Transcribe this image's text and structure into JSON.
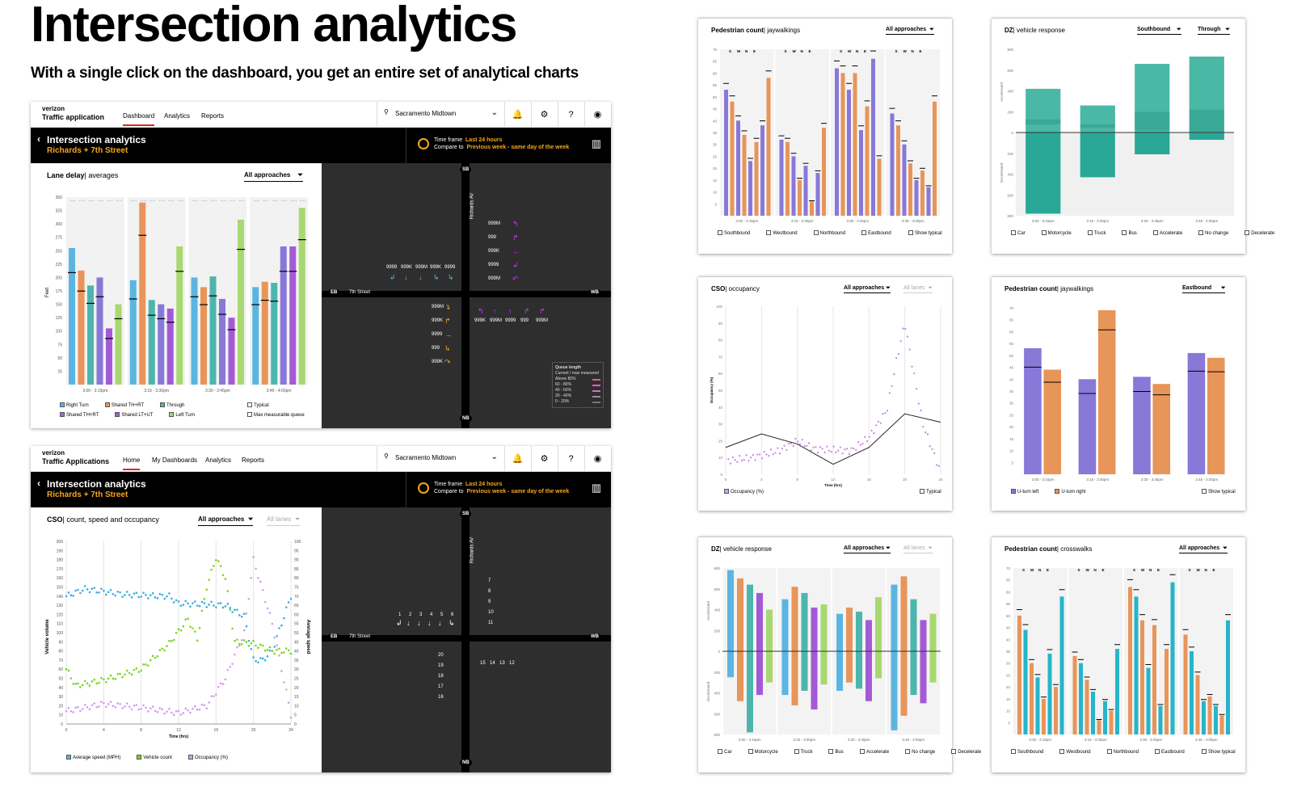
{
  "header": {
    "title": "Intersection analytics",
    "subtitle": "With a single click on the dashboard, you get an entire set of analytical charts"
  },
  "app1": {
    "brand_top": "verizon",
    "brand": "Traffic application",
    "nav": [
      "Dashboard",
      "Analytics",
      "Reports"
    ],
    "location": "Sacramento Midtown",
    "page_title": "Intersection analytics",
    "page_sub": "Richards + 7th Street",
    "tf_label": "Time frame",
    "tf_value": "Last 24 hours",
    "cmp_label": "Compare to",
    "cmp_value": "Previous week - same day of the week",
    "chart_title": "Lane delay",
    "chart_sub": "| averages",
    "filter": "All approaches",
    "chart_data": {
      "type": "bar",
      "ylabel": "Feet",
      "ylim": [
        0,
        350
      ],
      "yticks": [
        350,
        325,
        300,
        275,
        250,
        225,
        200,
        175,
        150,
        125,
        100,
        75,
        50,
        25
      ],
      "categories": [
        "3:00 - 3:15pm",
        "3:15 - 3:30pm",
        "3:30 - 3:45pm",
        "3:45 - 4:00pm"
      ],
      "series": [
        {
          "name": "Right Turn",
          "color": "#5bb5e0",
          "values": [
            255,
            195,
            200,
            182
          ]
        },
        {
          "name": "Shared TH+RT",
          "color": "#e8955a",
          "values": [
            213,
            340,
            182,
            192
          ]
        },
        {
          "name": "Through",
          "color": "#4db6ac",
          "values": [
            185,
            158,
            202,
            190
          ]
        },
        {
          "name": "Shared TH+RT",
          "color": "#8878d8",
          "values": [
            200,
            150,
            160,
            258
          ]
        },
        {
          "name": "Shared LT+UT",
          "color": "#a45ad6",
          "values": [
            105,
            142,
            125,
            258
          ]
        },
        {
          "name": "Left Turn",
          "color": "#a8d870",
          "values": [
            150,
            258,
            308,
            330
          ]
        }
      ]
    },
    "legend": [
      "Right Turn",
      "Shared TH+RT",
      "Through",
      "Shared TH+RT",
      "Shared LT+UT",
      "Left Turn"
    ],
    "legend_right": [
      "Typical",
      "Max measurable queue"
    ],
    "map": {
      "roads": {
        "sb": "SB",
        "nb": "NB",
        "eb": "EB",
        "wb": "WB",
        "street": "7th Street",
        "avenue": "Richards AV"
      },
      "east_lanes": [
        "999M",
        "999",
        "999K",
        "9999",
        "999M"
      ],
      "north_vals": [
        "9999",
        "999K",
        "999M",
        "999K",
        "9999"
      ],
      "west_lanes": [
        "999M",
        "999K",
        "9999",
        "999",
        "999K"
      ],
      "south_vals": [
        "999K",
        "999M",
        "9999",
        "999",
        "999M"
      ],
      "queue": {
        "title": "Queue length",
        "sub": "Current / max measured",
        "rows": [
          "Above 80%",
          "60 - 80%",
          "40 - 60%",
          "20 - 40%",
          "0 - 20%"
        ]
      }
    }
  },
  "app2": {
    "brand_top": "verizon",
    "brand": "Traffic Applications",
    "nav": [
      "Home",
      "My Dashboards",
      "Analytics",
      "Reports"
    ],
    "location": "Sacramento Midtown",
    "page_title": "Intersection analytics",
    "page_sub": "Richards + 7th Street",
    "tf_label": "Time frame",
    "tf_value": "Last 24 hours",
    "cmp_label": "Compare to",
    "cmp_value": "Previous week - same day of the week",
    "chart_title": "CSO",
    "chart_sub": "| count, speed and occupancy",
    "filter": "All approaches",
    "filter2": "All lanes",
    "chart_data": {
      "type": "scatter",
      "xlabel": "Time (hrs)",
      "ylabel": "Vehicle volume",
      "y2label": "Average speed",
      "xlim": [
        0,
        24
      ],
      "ylim": [
        0,
        200
      ],
      "y2lim": [
        0,
        100
      ],
      "xticks": [
        0,
        4,
        8,
        12,
        16,
        20,
        24
      ],
      "yticks": [
        200,
        190,
        180,
        170,
        160,
        150,
        140,
        130,
        120,
        110,
        100,
        90,
        80,
        70,
        60,
        50,
        40,
        30,
        20,
        10,
        0
      ],
      "y2ticks": [
        100,
        95,
        90,
        85,
        80,
        75,
        70,
        65,
        60,
        55,
        50,
        45,
        40,
        35,
        30,
        25,
        20,
        15,
        10,
        5,
        0
      ]
    },
    "legend": [
      "Average speed (MPH)",
      "Vehicle count",
      "Occupancy (%)"
    ],
    "map": {
      "north_nums": [
        "1",
        "2",
        "3",
        "4",
        "5",
        "6"
      ],
      "east_nums": [
        "7",
        "8",
        "9",
        "10",
        "11"
      ],
      "west_nums": [
        "20",
        "19",
        "18",
        "17",
        "16"
      ],
      "south_nums": [
        "15",
        "14",
        "13",
        "12"
      ]
    }
  },
  "cards": {
    "c1": {
      "title": "Pedestrian count",
      "sub": "| jaywalkings",
      "filter": "All approaches",
      "legend": [
        "Southbound",
        "Westbound",
        "Northbound",
        "Eastbound"
      ],
      "typical": "Show typical",
      "chart_data": {
        "type": "bar",
        "ylim": [
          0,
          70
        ],
        "categories": [
          "3:00 - 3:15pm",
          "3:15 - 3:30pm",
          "3:30 - 3:45pm",
          "3:45 - 4:00pm"
        ],
        "dirs": [
          "S",
          "W",
          "N",
          "E"
        ],
        "series": [
          {
            "name": "Southbound",
            "color": "#8878d8"
          },
          {
            "name": "Westbound",
            "color": "#e8955a"
          }
        ],
        "values": [
          [
            53,
            48,
            40,
            34,
            23,
            31,
            38,
            58
          ],
          [
            32,
            31,
            25,
            15,
            21,
            6,
            18,
            37
          ],
          [
            62,
            60,
            53,
            60,
            36,
            46,
            66,
            24
          ],
          [
            43,
            38,
            30,
            22,
            15,
            19,
            12,
            48
          ]
        ]
      }
    },
    "c2": {
      "title": "DZ",
      "sub": "| vehicle response",
      "filter": "Southbound",
      "filter2": "Through",
      "legend": [
        "Car",
        "Motorcycle",
        "Truck",
        "Bus",
        "Accelerate",
        "No change",
        "Decelerate"
      ],
      "chart_data": {
        "type": "bar",
        "ylim": [
          -800,
          800
        ],
        "categories": [
          "3:00 - 3:15pm",
          "3:15 - 3:30pm",
          "3:30 - 3:45pm",
          "3:45 - 4:00pm"
        ],
        "ylabel_top": "Accelerated",
        "ylabel_bottom": "Decelerated",
        "values": [
          {
            "up": 420,
            "down": -780
          },
          {
            "up": 260,
            "down": -430
          },
          {
            "up": 660,
            "down": -210
          },
          {
            "up": 730,
            "down": -70
          }
        ]
      }
    },
    "c3": {
      "title": "CSO",
      "sub": "| occupancy",
      "filter": "All approaches",
      "filter2": "All lanes",
      "legend": [
        "Occupancy (%)"
      ],
      "typical": "Typical",
      "chart_data": {
        "type": "scatter",
        "xlabel": "Time (hrs)",
        "ylabel": "Occupancy (%)",
        "xlim": [
          0,
          24
        ],
        "ylim": [
          0,
          100
        ],
        "xticks": [
          0,
          4,
          8,
          12,
          16,
          20,
          24
        ],
        "typical": [
          [
            0,
            16
          ],
          [
            4,
            24
          ],
          [
            8,
            18
          ],
          [
            12,
            6
          ],
          [
            16,
            16
          ],
          [
            20,
            36
          ],
          [
            24,
            31
          ]
        ]
      }
    },
    "c4": {
      "title": "Pedestrian count",
      "sub": "| jaywalkings",
      "filter": "Eastbound",
      "legend": [
        "U-turn left",
        "U-turn right"
      ],
      "typical": "Show typical",
      "chart_data": {
        "type": "bar",
        "ylim": [
          0,
          70
        ],
        "categories": [
          "3:00 - 3:15pm",
          "3:15 - 3:30pm",
          "3:30 - 3:45pm",
          "3:45 - 4:00pm"
        ],
        "series": [
          {
            "name": "U-turn left",
            "color": "#8878d8",
            "values": [
              53,
              40,
              41,
              51
            ]
          },
          {
            "name": "U-turn right",
            "color": "#e8955a",
            "values": [
              44,
              69,
              38,
              49
            ]
          }
        ]
      }
    },
    "c5": {
      "title": "DZ",
      "sub": "| vehicle response",
      "filter": "All approaches",
      "filter2": "All lanes",
      "legend": [
        "Car",
        "Motorcycle",
        "Truck",
        "Bus",
        "Accelerate",
        "No change",
        "Decelerate"
      ],
      "chart_data": {
        "type": "bar",
        "ylim": [
          -800,
          800
        ],
        "categories": [
          "3:00 - 3:15pm",
          "3:15 - 3:30pm",
          "3:30 - 3:45pm",
          "3:45 - 4:00pm"
        ]
      }
    },
    "c6": {
      "title": "Pedestrian count",
      "sub": "| crosswalks",
      "filter": "All approaches",
      "legend": [
        "Southbound",
        "Westbound",
        "Northbound",
        "Eastbound"
      ],
      "typical": "Show typical",
      "chart_data": {
        "type": "bar",
        "ylim": [
          0,
          70
        ],
        "categories": [
          "3:00 - 3:15pm",
          "3:15 - 3:30pm",
          "3:30 - 3:45pm",
          "3:45 - 4:00pm"
        ],
        "dirs": [
          "S",
          "W",
          "N",
          "E"
        ]
      }
    }
  }
}
